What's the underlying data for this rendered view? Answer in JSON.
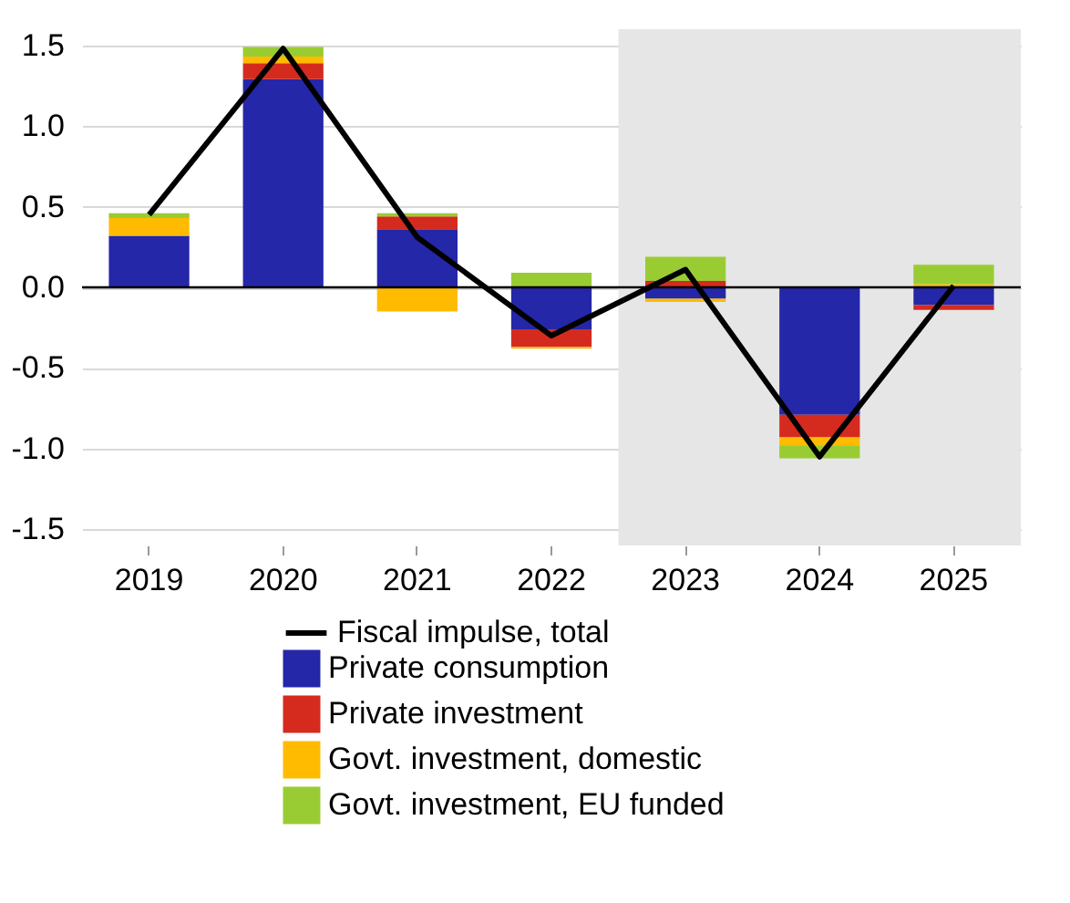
{
  "chart_data": {
    "type": "bar",
    "stacked": true,
    "categories": [
      "2019",
      "2020",
      "2021",
      "2022",
      "2023",
      "2024",
      "2025"
    ],
    "series": [
      {
        "name": "Fiscal impulse, total",
        "type": "line",
        "color": "#000000",
        "values": [
          0.45,
          1.48,
          0.31,
          -0.3,
          0.11,
          -1.05,
          0.01
        ]
      },
      {
        "name": "Private consumption",
        "color": "#2427a8",
        "values": [
          0.32,
          1.29,
          0.36,
          -0.26,
          -0.07,
          -0.79,
          -0.11
        ]
      },
      {
        "name": "Private investment",
        "color": "#d52b1e",
        "values": [
          0.0,
          0.1,
          0.08,
          -0.11,
          0.04,
          -0.14,
          -0.03
        ]
      },
      {
        "name": "Govt. investment, domestic",
        "color": "#ffbb00",
        "values": [
          0.11,
          0.04,
          -0.15,
          -0.01,
          -0.02,
          -0.05,
          0.02
        ]
      },
      {
        "name": "Govt. investment, EU funded",
        "color": "#99cc33",
        "values": [
          0.03,
          0.06,
          0.02,
          0.09,
          0.15,
          -0.08,
          0.12
        ]
      }
    ],
    "ylim": [
      -1.6,
      1.6
    ],
    "yticks": [
      {
        "value": -1.5,
        "label": "-1.5"
      },
      {
        "value": -1.0,
        "label": "-1.0"
      },
      {
        "value": -0.5,
        "label": "-0.5"
      },
      {
        "value": 0,
        "label": "0.0"
      },
      {
        "value": 0.5,
        "label": "0.5"
      },
      {
        "value": 1,
        "label": "1.0"
      },
      {
        "value": 1.5,
        "label": "1.5"
      }
    ],
    "grid": "y",
    "legend": "bottom",
    "bands": [
      {
        "axis": "x",
        "from": "2023",
        "to": "2025",
        "color": "#e6e6e6"
      }
    ],
    "ref_lines": [
      {
        "axis": "y",
        "value": 0,
        "color": "#000000"
      }
    ]
  }
}
